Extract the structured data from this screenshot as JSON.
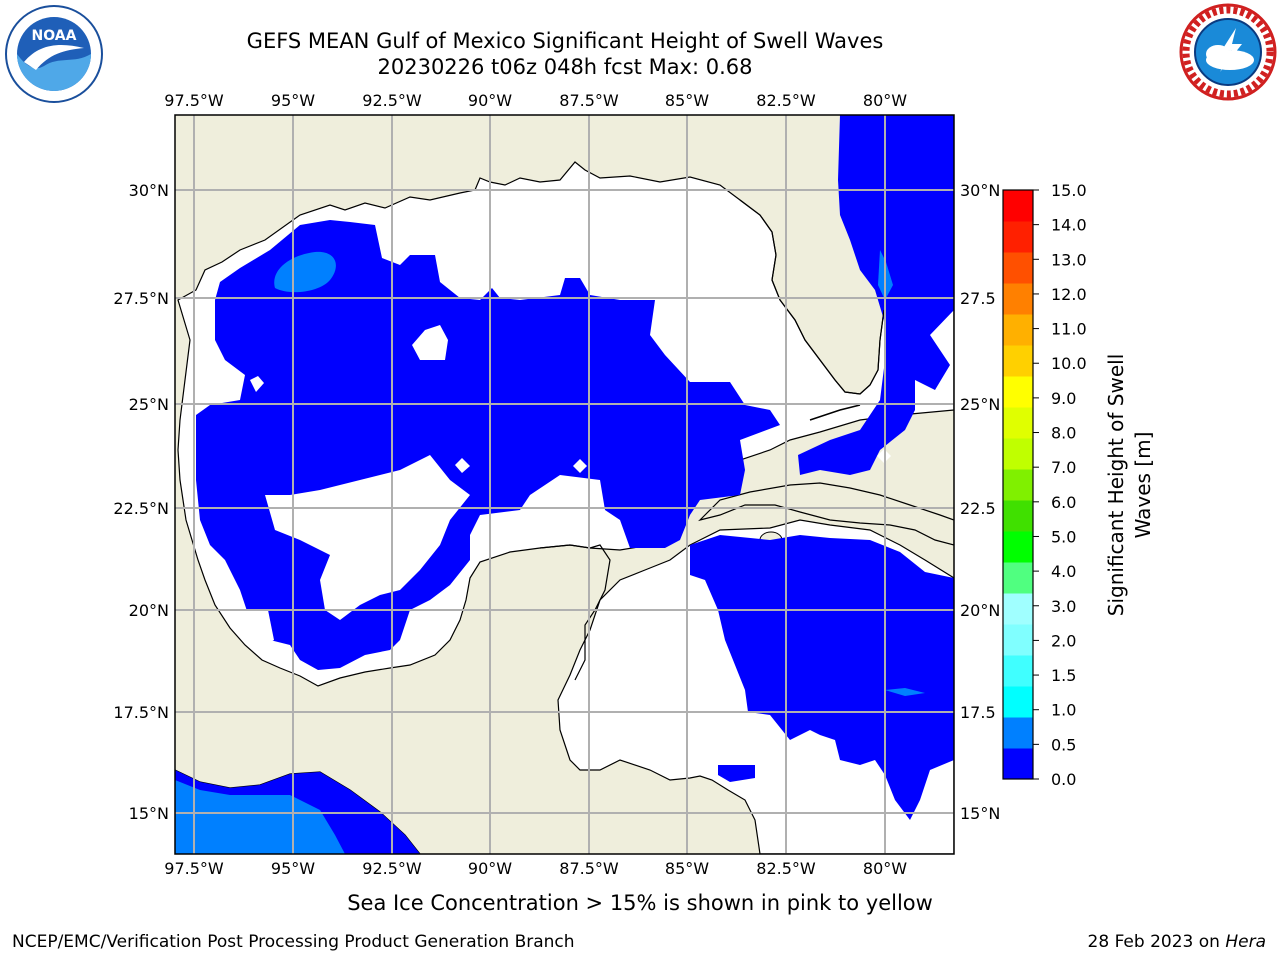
{
  "header": {
    "title_line1": "GEFS MEAN Gulf of Mexico Significant Height of Swell Waves",
    "title_line2": "20230226 t06z 048h fcst   Max: 0.68"
  },
  "logos": {
    "left": {
      "text": "NOAA",
      "ring_text": "NATIONAL OCEANIC AND ATMOSPHERIC ADMINISTRATION · U.S. DEPARTMENT OF COMMERCE"
    },
    "right": {
      "ring_text": "NATIONAL WEATHER SERVICE"
    }
  },
  "map": {
    "lon_labels": [
      "97.5°W",
      "95°W",
      "92.5°W",
      "90°W",
      "87.5°W",
      "85°W",
      "82.5°W",
      "80°W"
    ],
    "lat_labels": [
      "30°N",
      "27.5°N",
      "25°N",
      "22.5°N",
      "20°N",
      "17.5°N",
      "15°N"
    ],
    "lat_labels_right": [
      "30°N",
      "27.5",
      "25°N",
      "22.5",
      "20°N",
      "17.5",
      "15°N"
    ],
    "colors": {
      "land": "#efeedc",
      "ocean": "#ffffff",
      "swell_low": "#0000ff",
      "swell_mid": "#0080ff",
      "grid": "#b0b0b0"
    }
  },
  "colorbar": {
    "label_line1": "Significant Height of Swell",
    "label_line2": "Waves [m]",
    "ticks": [
      "0.0",
      "0.5",
      "1.0",
      "1.5",
      "2.0",
      "3.0",
      "4.0",
      "5.0",
      "6.0",
      "7.0",
      "8.0",
      "9.0",
      "10.0",
      "11.0",
      "12.0",
      "13.0",
      "14.0",
      "15.0"
    ],
    "colors": [
      "#0000ff",
      "#0080ff",
      "#00ffff",
      "#40ffff",
      "#80ffff",
      "#a0ffff",
      "#50ff80",
      "#00ff00",
      "#40e000",
      "#80f000",
      "#c0ff00",
      "#e0ff00",
      "#ffff00",
      "#ffd000",
      "#ffb000",
      "#ff8000",
      "#ff5000",
      "#ff2000",
      "#ff0000"
    ]
  },
  "footer": {
    "sea_ice_note": "Sea Ice Concentration > 15% is shown in pink to yellow",
    "left": "NCEP/EMC/Verification Post Processing Product Generation Branch",
    "right_date": "28 Feb 2023 on ",
    "right_machine": "Hera"
  }
}
